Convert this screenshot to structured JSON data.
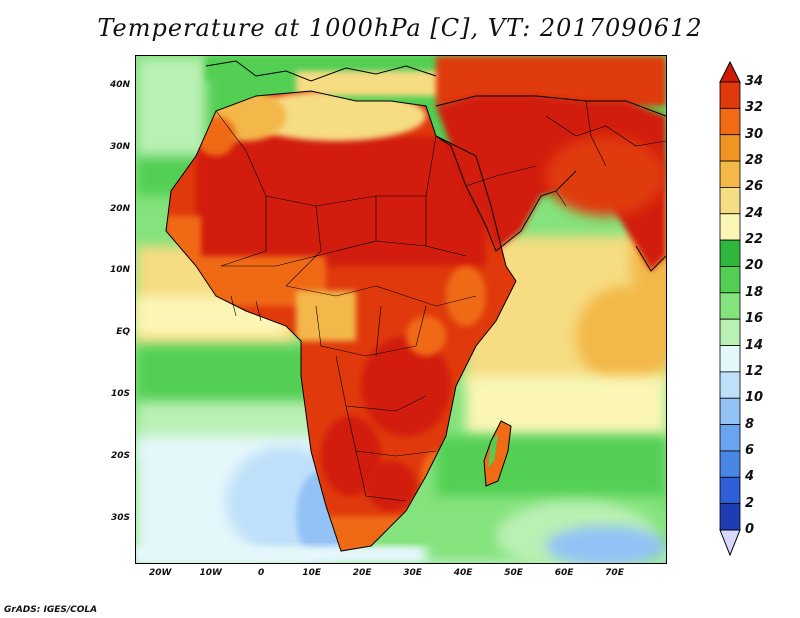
{
  "title": "Temperature at 1000hPa [C], VT: 2017090612",
  "credit": "GrADS: IGES/COLA",
  "map": {
    "lon_range": [
      -25,
      80
    ],
    "lat_range": [
      -37,
      45
    ],
    "lat_ticks": [
      {
        "label": "40N",
        "value": 40
      },
      {
        "label": "30N",
        "value": 30
      },
      {
        "label": "20N",
        "value": 20
      },
      {
        "label": "10N",
        "value": 10
      },
      {
        "label": "EQ",
        "value": 0
      },
      {
        "label": "10S",
        "value": -10
      },
      {
        "label": "20S",
        "value": -20
      },
      {
        "label": "30S",
        "value": -30
      }
    ],
    "lon_ticks": [
      {
        "label": "20W",
        "value": -20
      },
      {
        "label": "10W",
        "value": -10
      },
      {
        "label": "0",
        "value": 0
      },
      {
        "label": "10E",
        "value": 10
      },
      {
        "label": "20E",
        "value": 20
      },
      {
        "label": "30E",
        "value": 30
      },
      {
        "label": "40E",
        "value": 40
      },
      {
        "label": "50E",
        "value": 50
      },
      {
        "label": "60E",
        "value": 60
      },
      {
        "label": "70E",
        "value": 70
      }
    ]
  },
  "colorbar": {
    "labels": [
      "34",
      "32",
      "30",
      "28",
      "26",
      "24",
      "22",
      "20",
      "18",
      "16",
      "14",
      "12",
      "10",
      "8",
      "6",
      "4",
      "2",
      "0"
    ],
    "colors": [
      "#0a0a78",
      "#1e3cb4",
      "#2f5fd6",
      "#4a86e6",
      "#6aa3f0",
      "#93c2f6",
      "#bfe0fa",
      "#e4f7fa",
      "#b9f0b4",
      "#84e37c",
      "#52cf52",
      "#2fb63c",
      "#fbf6b6",
      "#f6dc82",
      "#f3b848",
      "#f09422",
      "#f06b14",
      "#e03a0c",
      "#d21a08"
    ]
  }
}
